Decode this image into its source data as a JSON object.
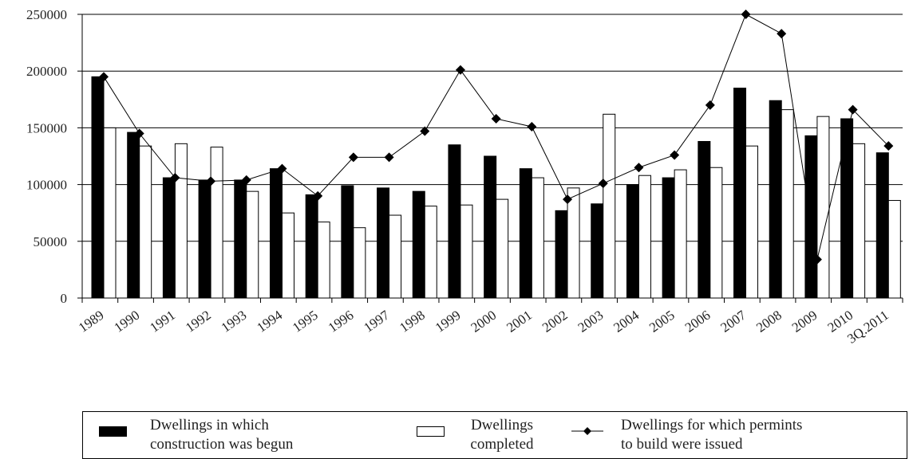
{
  "chart_data": {
    "type": "bar",
    "categories": [
      "1989",
      "1990",
      "1991",
      "1992",
      "1993",
      "1994",
      "1995",
      "1996",
      "1997",
      "1998",
      "1999",
      "2000",
      "2001",
      "2002",
      "2003",
      "2004",
      "2005",
      "2006",
      "2007",
      "2008",
      "2009",
      "2010",
      "3Q.2011"
    ],
    "series": [
      {
        "name": "Dwellings in which construction was begun",
        "type": "bar",
        "color": "#000000",
        "values": [
          195000,
          146000,
          106000,
          104000,
          104000,
          114000,
          91000,
          99000,
          97000,
          94000,
          135000,
          125000,
          114000,
          77000,
          83000,
          100000,
          106000,
          138000,
          185000,
          174000,
          143000,
          158000,
          128000
        ]
      },
      {
        "name": "Dwellings completed",
        "type": "bar",
        "color": "#ffffff",
        "values": [
          150000,
          134000,
          136000,
          133000,
          94000,
          75000,
          67000,
          62000,
          73000,
          81000,
          82000,
          87000,
          106000,
          97000,
          162000,
          108000,
          113000,
          115000,
          134000,
          166000,
          160000,
          136000,
          86000
        ]
      },
      {
        "name": "Dwellings for which permints to build were issued",
        "type": "line",
        "marker": "diamond",
        "color": "#000000",
        "values": [
          195000,
          145000,
          106000,
          103000,
          104000,
          114000,
          90000,
          124000,
          124000,
          147000,
          201000,
          158000,
          151000,
          87000,
          101000,
          115000,
          126000,
          170000,
          250000,
          233000,
          34000,
          166000,
          134000
        ]
      }
    ],
    "ylim": [
      0,
      250000
    ],
    "yticks": [
      "0",
      "50000",
      "100000",
      "150000",
      "200000",
      "250000"
    ],
    "grid": true,
    "legend_position": "bottom",
    "title": "",
    "xlabel": "",
    "ylabel": ""
  },
  "legend": {
    "begun": "Dwellings in which\nconstruction was begun",
    "completed": "Dwellings\ncompleted",
    "permits": "Dwellings for which permints\nto build were issued"
  }
}
